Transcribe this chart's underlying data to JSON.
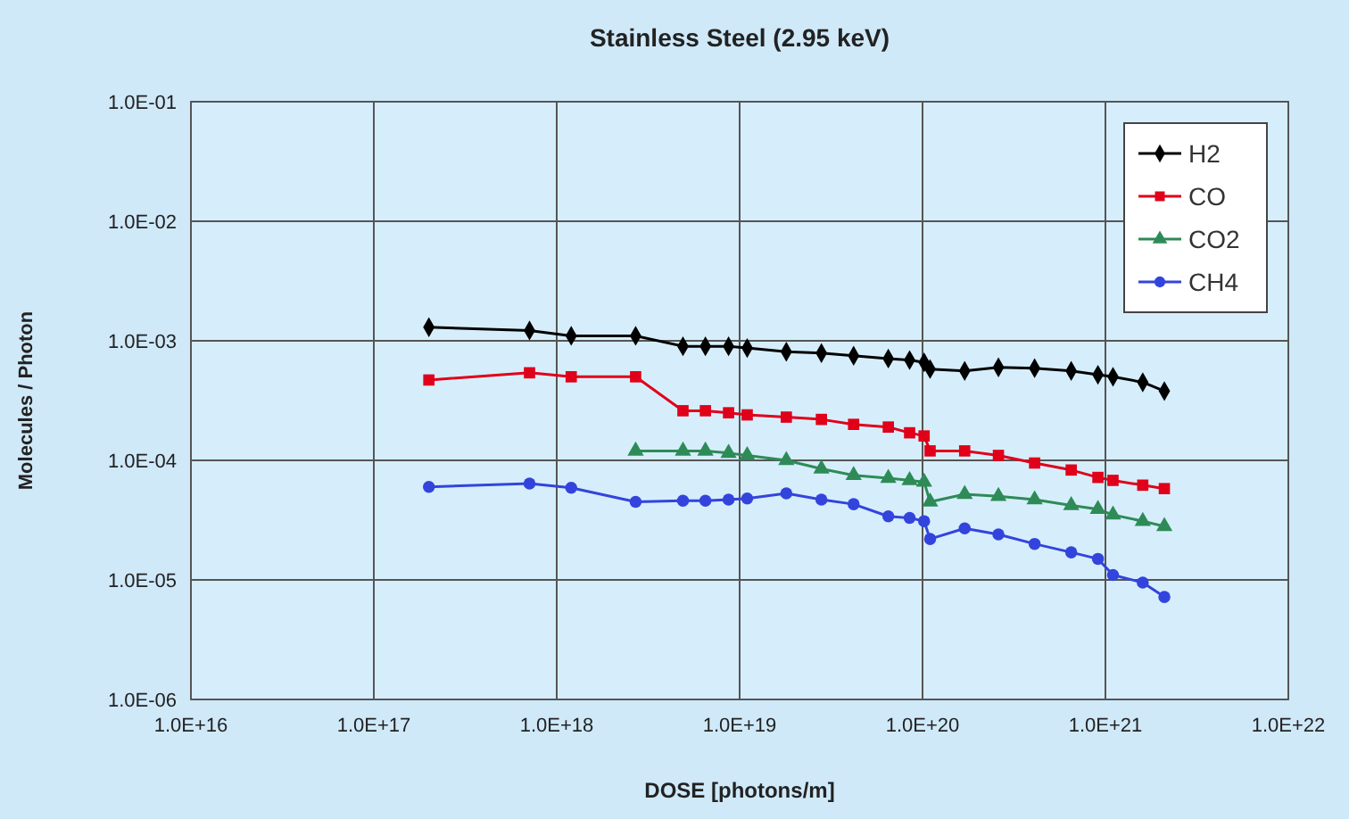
{
  "chart_data": {
    "type": "line",
    "title": "Stainless Steel (2.95 keV)",
    "xlabel": "DOSE [photons/m]",
    "ylabel": "Molecules / Photon",
    "log": "xy",
    "grid": true,
    "legend": "top right",
    "x": [
      2e+17,
      7.1e+17,
      1.2e+18,
      2.7e+18,
      4.9e+18,
      6.5e+18,
      8.7e+18,
      1.1e+19,
      1.8e+19,
      2.8e+19,
      4.2e+19,
      6.5e+19,
      8.5e+19,
      1.02e+20,
      1.1e+20,
      1.7e+20,
      2.6e+20,
      4.1e+20,
      6.5e+20,
      9.1e+20,
      1.1e+21,
      1.6e+21,
      2.1e+21
    ],
    "xlim": [
      1e+16,
      1e+22
    ],
    "xticks": [
      {
        "value": 1e+16,
        "label": "1.0E+16"
      },
      {
        "value": 1e+17,
        "label": "1.0E+17"
      },
      {
        "value": 1e+18,
        "label": "1.0E+18"
      },
      {
        "value": 1e+19,
        "label": "1.0E+19"
      },
      {
        "value": 1e+20,
        "label": "1.0E+20"
      },
      {
        "value": 1e+21,
        "label": "1.0E+21"
      },
      {
        "value": 1e+22,
        "label": "1.0E+22"
      }
    ],
    "ylim": [
      1e-06,
      0.1
    ],
    "yticks": [
      {
        "value": 1e-06,
        "label": "1.0E-06"
      },
      {
        "value": 1e-05,
        "label": "1.0E-05"
      },
      {
        "value": 0.0001,
        "label": "1.0E-04"
      },
      {
        "value": 0.001,
        "label": "1.0E-03"
      },
      {
        "value": 0.01,
        "label": "1.0E-02"
      },
      {
        "value": 0.1,
        "label": "1.0E-01"
      }
    ],
    "series": [
      {
        "name": "H2",
        "color": "#000000",
        "marker": "diamond",
        "values": [
          0.0013,
          0.00122,
          0.0011,
          0.0011,
          0.0009,
          0.0009,
          0.0009,
          0.00087,
          0.00081,
          0.00079,
          0.00075,
          0.00071,
          0.00069,
          0.00066,
          0.00058,
          0.00056,
          0.0006,
          0.00059,
          0.00056,
          0.00052,
          0.0005,
          0.00045,
          0.00038
        ]
      },
      {
        "name": "CO",
        "color": "#e0001a",
        "marker": "square",
        "values": [
          0.00047,
          0.00054,
          0.0005,
          0.0005,
          0.00026,
          0.00026,
          0.00025,
          0.00024,
          0.00023,
          0.00022,
          0.0002,
          0.00019,
          0.00017,
          0.00016,
          0.00012,
          0.00012,
          0.00011,
          9.5e-05,
          8.3e-05,
          7.2e-05,
          6.8e-05,
          6.2e-05,
          5.8e-05
        ]
      },
      {
        "name": "CO2",
        "color": "#2e8b57",
        "marker": "triangle",
        "values": [
          null,
          null,
          null,
          0.00012,
          0.00012,
          0.00012,
          0.000115,
          0.00011,
          0.0001,
          8.5e-05,
          7.5e-05,
          7.1e-05,
          6.8e-05,
          6.6e-05,
          4.5e-05,
          5.2e-05,
          5e-05,
          4.7e-05,
          4.2e-05,
          3.9e-05,
          3.5e-05,
          3.1e-05,
          2.8e-05
        ]
      },
      {
        "name": "CH4",
        "color": "#3344dd",
        "marker": "circle",
        "values": [
          6e-05,
          6.4e-05,
          5.9e-05,
          4.5e-05,
          4.6e-05,
          4.6e-05,
          4.7e-05,
          4.8e-05,
          5.3e-05,
          4.7e-05,
          4.3e-05,
          3.4e-05,
          3.3e-05,
          3.1e-05,
          2.2e-05,
          2.7e-05,
          2.4e-05,
          2e-05,
          1.7e-05,
          1.5e-05,
          1.1e-05,
          9.5e-06,
          7.2e-06
        ]
      }
    ]
  }
}
